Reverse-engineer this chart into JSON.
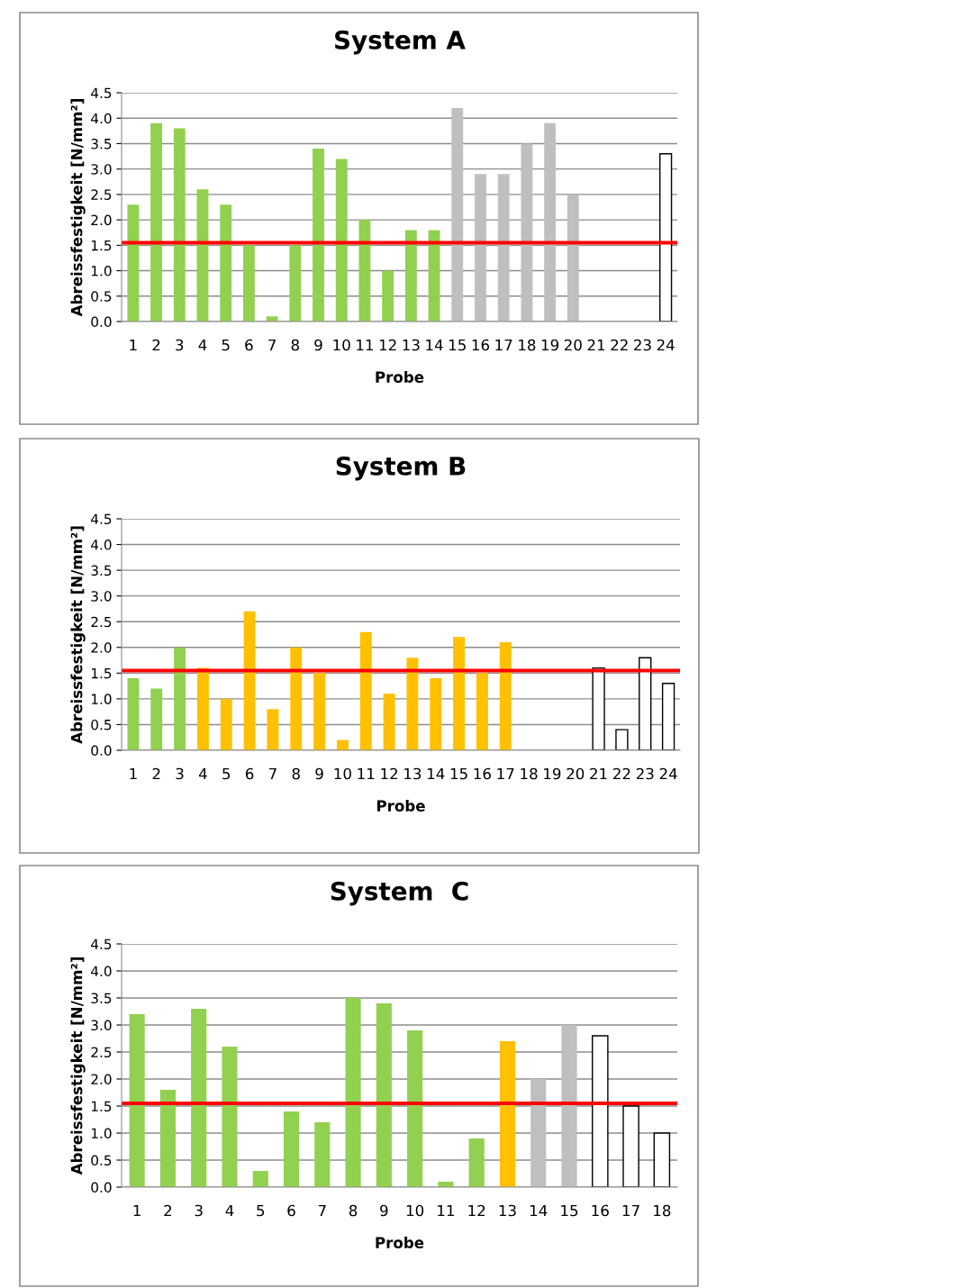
{
  "chart_data": [
    {
      "type": "bar",
      "title": "System A",
      "xlabel": "Probe",
      "ylabel": "Abreissfestigkeit [N/mm²]",
      "categories": [
        "1",
        "2",
        "3",
        "4",
        "5",
        "6",
        "7",
        "8",
        "9",
        "10",
        "11",
        "12",
        "13",
        "14",
        "15",
        "16",
        "17",
        "18",
        "19",
        "20",
        "21",
        "22",
        "23",
        "24"
      ],
      "values": [
        2.3,
        3.9,
        3.8,
        2.6,
        2.3,
        1.5,
        0.1,
        1.5,
        3.4,
        3.2,
        2.0,
        1.0,
        1.8,
        1.8,
        4.2,
        2.9,
        2.9,
        3.5,
        3.9,
        2.5,
        null,
        null,
        null,
        3.3
      ],
      "colors": [
        "#92d050",
        "#92d050",
        "#92d050",
        "#92d050",
        "#92d050",
        "#92d050",
        "#92d050",
        "#92d050",
        "#92d050",
        "#92d050",
        "#92d050",
        "#92d050",
        "#92d050",
        "#92d050",
        "#bfbfbf",
        "#bfbfbf",
        "#bfbfbf",
        "#bfbfbf",
        "#bfbfbf",
        "#bfbfbf",
        "#ffffff",
        "#ffffff",
        "#ffffff",
        "#ffffff"
      ],
      "ylim": [
        0,
        4.5
      ],
      "yticks": [
        {
          "value": 0,
          "label": "0.0"
        },
        {
          "value": 0.5,
          "label": "0.5"
        },
        {
          "value": 1,
          "label": "1.0"
        },
        {
          "value": 1.5,
          "label": "1.5"
        },
        {
          "value": 2,
          "label": "2.0"
        },
        {
          "value": 2.5,
          "label": "2.5"
        },
        {
          "value": 3,
          "label": "3.0"
        },
        {
          "value": 3.5,
          "label": "3.5"
        },
        {
          "value": 4,
          "label": "4.0"
        },
        {
          "value": 4.5,
          "label": "4.5"
        }
      ],
      "grid": "y",
      "legend": false,
      "ref_lines": [
        {
          "axis": "y",
          "value": 1.55,
          "color": "#ff0000"
        }
      ]
    },
    {
      "type": "bar",
      "title": "System B",
      "xlabel": "Probe",
      "ylabel": "Abreissfestigkeit [N/mm²]",
      "categories": [
        "1",
        "2",
        "3",
        "4",
        "5",
        "6",
        "7",
        "8",
        "9",
        "10",
        "11",
        "12",
        "13",
        "14",
        "15",
        "16",
        "17",
        "18",
        "19",
        "20",
        "21",
        "22",
        "23",
        "24"
      ],
      "values": [
        1.4,
        1.2,
        2.0,
        1.6,
        1.0,
        2.7,
        0.8,
        2.0,
        1.5,
        0.2,
        2.3,
        1.1,
        1.8,
        1.4,
        2.2,
        1.5,
        2.1,
        null,
        null,
        null,
        1.6,
        0.4,
        1.8,
        1.3
      ],
      "colors": [
        "#92d050",
        "#92d050",
        "#92d050",
        "#ffc000",
        "#ffc000",
        "#ffc000",
        "#ffc000",
        "#ffc000",
        "#ffc000",
        "#ffc000",
        "#ffc000",
        "#ffc000",
        "#ffc000",
        "#ffc000",
        "#ffc000",
        "#ffc000",
        "#ffc000",
        "#ffffff",
        "#ffffff",
        "#ffffff",
        "#ffffff",
        "#ffffff",
        "#ffffff",
        "#ffffff"
      ],
      "ylim": [
        0,
        4.5
      ],
      "yticks": [
        {
          "value": 0,
          "label": "0.0"
        },
        {
          "value": 0.5,
          "label": "0.5"
        },
        {
          "value": 1,
          "label": "1.0"
        },
        {
          "value": 1.5,
          "label": "1.5"
        },
        {
          "value": 2,
          "label": "2.0"
        },
        {
          "value": 2.5,
          "label": "2.5"
        },
        {
          "value": 3,
          "label": "3.0"
        },
        {
          "value": 3.5,
          "label": "3.5"
        },
        {
          "value": 4,
          "label": "4.0"
        },
        {
          "value": 4.5,
          "label": "4.5"
        }
      ],
      "grid": "y",
      "legend": false,
      "ref_lines": [
        {
          "axis": "y",
          "value": 1.55,
          "color": "#ff0000"
        }
      ]
    },
    {
      "type": "bar",
      "title": "System  C",
      "xlabel": "Probe",
      "ylabel": "Abreissfestigkeit [N/mm²]",
      "categories": [
        "1",
        "2",
        "3",
        "4",
        "5",
        "6",
        "7",
        "8",
        "9",
        "10",
        "11",
        "12",
        "13",
        "14",
        "15",
        "16",
        "17",
        "18"
      ],
      "values": [
        3.2,
        1.8,
        3.3,
        2.6,
        0.3,
        1.4,
        1.2,
        3.5,
        3.4,
        2.9,
        0.1,
        0.9,
        2.7,
        2.0,
        3.0,
        2.8,
        1.5,
        1.0
      ],
      "colors": [
        "#92d050",
        "#92d050",
        "#92d050",
        "#92d050",
        "#92d050",
        "#92d050",
        "#92d050",
        "#92d050",
        "#92d050",
        "#92d050",
        "#92d050",
        "#92d050",
        "#ffc000",
        "#bfbfbf",
        "#bfbfbf",
        "#ffffff",
        "#ffffff",
        "#ffffff"
      ],
      "ylim": [
        0,
        4.5
      ],
      "yticks": [
        {
          "value": 0,
          "label": "0.0"
        },
        {
          "value": 0.5,
          "label": "0.5"
        },
        {
          "value": 1,
          "label": "1.0"
        },
        {
          "value": 1.5,
          "label": "1.5"
        },
        {
          "value": 2,
          "label": "2.0"
        },
        {
          "value": 2.5,
          "label": "2.5"
        },
        {
          "value": 3,
          "label": "3.0"
        },
        {
          "value": 3.5,
          "label": "3.5"
        },
        {
          "value": 4,
          "label": "4.0"
        },
        {
          "value": 4.5,
          "label": "4.5"
        }
      ],
      "grid": "y",
      "legend": false,
      "ref_lines": [
        {
          "axis": "y",
          "value": 1.55,
          "color": "#ff0000"
        }
      ]
    }
  ]
}
